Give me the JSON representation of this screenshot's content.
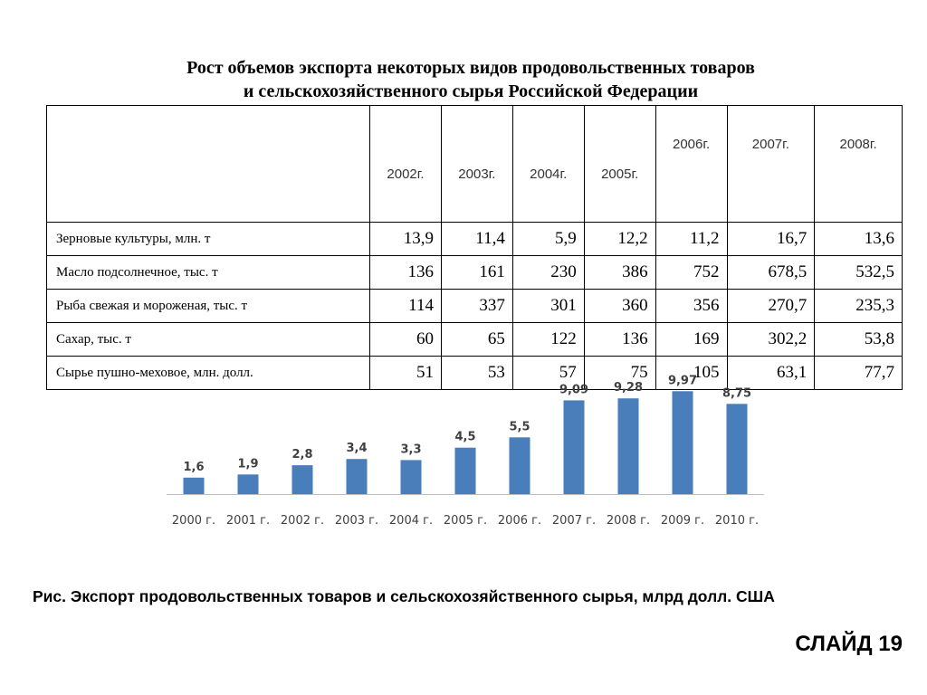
{
  "title": {
    "line1": "Рост объемов экспорта некоторых видов продовольственных товаров",
    "line2": "и сельскохозяйственного сырья Российской Федерации"
  },
  "table": {
    "header_blank": "",
    "years": [
      "2002г.",
      "2003г.",
      "2004г.",
      "2005г.",
      "2006г.",
      "2007г.",
      "2008г."
    ],
    "rows": [
      {
        "label": "Зерновые культуры, млн. т",
        "values": [
          "13,9",
          "11,4",
          "5,9",
          "12,2",
          "11,2",
          "16,7",
          "13,6"
        ]
      },
      {
        "label": "Масло подсолнечное, тыс. т",
        "values": [
          "136",
          "161",
          "230",
          "386",
          "752",
          "678,5",
          "532,5"
        ]
      },
      {
        "label": "Рыба свежая и мороженая, тыс. т",
        "values": [
          "114",
          "337",
          "301",
          "360",
          "356",
          "270,7",
          "235,3"
        ]
      },
      {
        "label": "Сахар, тыс. т",
        "values": [
          "60",
          "65",
          "122",
          "136",
          "169",
          "302,2",
          "53,8"
        ]
      },
      {
        "label": "Сырье пушно-меховое, млн. долл.",
        "values": [
          "51",
          "53",
          "57",
          "75",
          "105",
          "63,1",
          "77,7"
        ]
      }
    ]
  },
  "chart_data": {
    "type": "bar",
    "title": "",
    "xlabel": "",
    "ylabel": "",
    "categories": [
      "2000 г.",
      "2001 г.",
      "2002 г.",
      "2003 г.",
      "2004 г.",
      "2005 г.",
      "2006 г.",
      "2007 г.",
      "2008 г.",
      "2009 г.",
      "2010 г."
    ],
    "values": [
      1.6,
      1.9,
      2.8,
      3.4,
      3.3,
      4.5,
      5.5,
      9.09,
      9.28,
      9.97,
      8.75
    ],
    "data_labels": [
      "1,6",
      "1,9",
      "2,8",
      "3,4",
      "3,3",
      "4,5",
      "5,5",
      "9,09",
      "9,28",
      "9,97",
      "8,75"
    ],
    "ylim": [
      0,
      10
    ],
    "grid": false,
    "bar_color": "#4a7ebb"
  },
  "caption": "Рис. Экспорт продовольственных товаров и сельскохозяйственного сырья, млрд долл. США",
  "slide_label": "СЛАЙД 19"
}
